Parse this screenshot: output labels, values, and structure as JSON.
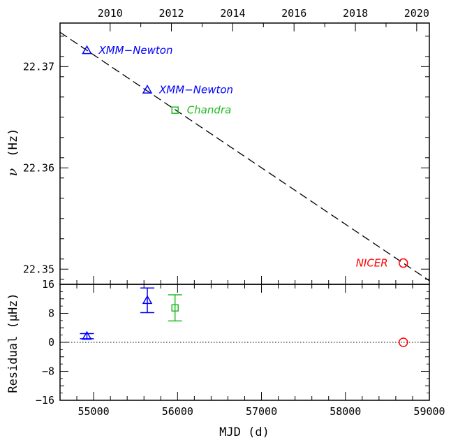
{
  "chart_data": [
    {
      "type": "scatter",
      "panel": "frequency",
      "title": "",
      "ylabel": "ν (Hz)",
      "ylabel_symbol": "ν",
      "ylabel_unit": "(Hz)",
      "xlim": [
        54600,
        59000
      ],
      "ylim": [
        22.3485,
        22.3743
      ],
      "x_top_axis": {
        "label": "",
        "ticks": [
          {
            "label": "2010",
            "mjd": 55197
          },
          {
            "label": "2012",
            "mjd": 55927
          },
          {
            "label": "2014",
            "mjd": 56658
          },
          {
            "label": "2016",
            "mjd": 57388
          },
          {
            "label": "2018",
            "mjd": 58119
          },
          {
            "label": "2020",
            "mjd": 58849
          }
        ]
      },
      "y_ticks": [
        {
          "label": "22.37",
          "value": 22.37
        },
        {
          "label": "22.36",
          "value": 22.36
        },
        {
          "label": "22.35",
          "value": 22.35
        }
      ],
      "fit_line": {
        "style": "dashed",
        "color": "#000000",
        "x": [
          54600,
          59000
        ],
        "y": [
          22.37339,
          22.34886
        ]
      },
      "points": [
        {
          "mission": "XMM-Newton",
          "marker": "triangle",
          "color": "#0000ff",
          "x": 54920,
          "y": 22.3716
        },
        {
          "mission": "XMM-Newton",
          "marker": "triangle",
          "color": "#0000ff",
          "x": 55640,
          "y": 22.3677
        },
        {
          "mission": "Chandra",
          "marker": "square",
          "color": "#22bb22",
          "x": 55970,
          "y": 22.3657
        },
        {
          "mission": "NICER",
          "marker": "circle",
          "color": "#ff0000",
          "x": 58690,
          "y": 22.3506
        }
      ],
      "annotations": [
        {
          "text": "XMM−Newton",
          "color": "#0000ff",
          "point": 0,
          "side": "right"
        },
        {
          "text": "XMM−Newton",
          "color": "#0000ff",
          "point": 1,
          "side": "right"
        },
        {
          "text": "Chandra",
          "color": "#22bb22",
          "point": 2,
          "side": "right"
        },
        {
          "text": "NICER",
          "color": "#ff0000",
          "point": 3,
          "side": "left"
        }
      ]
    },
    {
      "type": "scatter",
      "panel": "residual",
      "xlabel": "MJD (d)",
      "ylabel": "Residual (μHz)",
      "xlim": [
        54600,
        59000
      ],
      "ylim": [
        -16,
        16
      ],
      "x_ticks": [
        {
          "label": "55000",
          "value": 55000
        },
        {
          "label": "56000",
          "value": 56000
        },
        {
          "label": "57000",
          "value": 57000
        },
        {
          "label": "58000",
          "value": 58000
        },
        {
          "label": "59000",
          "value": 59000
        }
      ],
      "y_ticks": [
        {
          "label": "16",
          "value": 16
        },
        {
          "label": "8",
          "value": 8
        },
        {
          "label": "0",
          "value": 0
        },
        {
          "label": "−8",
          "value": -8
        },
        {
          "label": "−16",
          "value": -16
        }
      ],
      "zero_line": {
        "style": "dotted",
        "value": 0
      },
      "points": [
        {
          "mission": "XMM-Newton",
          "marker": "triangle",
          "color": "#0000ff",
          "x": 54920,
          "y": 1.7,
          "err": 0.7
        },
        {
          "mission": "XMM-Newton",
          "marker": "triangle",
          "color": "#0000ff",
          "x": 55640,
          "y": 11.6,
          "err": 3.4
        },
        {
          "mission": "Chandra",
          "marker": "square",
          "color": "#22bb22",
          "x": 55970,
          "y": 9.5,
          "err": 3.6
        },
        {
          "mission": "NICER",
          "marker": "circle",
          "color": "#ff0000",
          "x": 58690,
          "y": 0.0,
          "err": 0.3
        }
      ]
    }
  ]
}
